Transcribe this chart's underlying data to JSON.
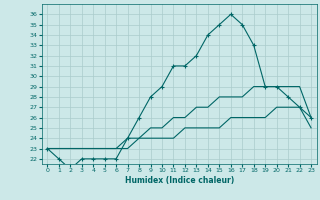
{
  "title": "",
  "xlabel": "Humidex (Indice chaleur)",
  "ylabel": "",
  "bg_color": "#cce8e8",
  "grid_color": "#aacccc",
  "line_color": "#006666",
  "xlim": [
    -0.5,
    23.5
  ],
  "ylim": [
    21.5,
    37.0
  ],
  "xticks": [
    0,
    1,
    2,
    3,
    4,
    5,
    6,
    7,
    8,
    9,
    10,
    11,
    12,
    13,
    14,
    15,
    16,
    17,
    18,
    19,
    20,
    21,
    22,
    23
  ],
  "yticks": [
    22,
    23,
    24,
    25,
    26,
    27,
    28,
    29,
    30,
    31,
    32,
    33,
    34,
    35,
    36
  ],
  "series": [
    {
      "x": [
        0,
        1,
        2,
        3,
        4,
        5,
        6,
        7,
        8,
        9,
        10,
        11,
        12,
        13,
        14,
        15,
        16,
        17,
        18,
        19,
        20,
        21,
        22,
        23
      ],
      "y": [
        23,
        22,
        21,
        22,
        22,
        22,
        22,
        24,
        26,
        28,
        29,
        31,
        31,
        32,
        34,
        35,
        36,
        35,
        33,
        29,
        29,
        28,
        27,
        26
      ],
      "marker": "+"
    },
    {
      "x": [
        0,
        1,
        2,
        3,
        4,
        5,
        6,
        7,
        8,
        9,
        10,
        11,
        12,
        13,
        14,
        15,
        16,
        17,
        18,
        19,
        20,
        21,
        22,
        23
      ],
      "y": [
        23,
        23,
        23,
        23,
        23,
        23,
        23,
        24,
        24,
        25,
        25,
        26,
        26,
        27,
        27,
        28,
        28,
        28,
        29,
        29,
        29,
        29,
        29,
        26
      ],
      "marker": null
    },
    {
      "x": [
        0,
        1,
        2,
        3,
        4,
        5,
        6,
        7,
        8,
        9,
        10,
        11,
        12,
        13,
        14,
        15,
        16,
        17,
        18,
        19,
        20,
        21,
        22,
        23
      ],
      "y": [
        23,
        23,
        23,
        23,
        23,
        23,
        23,
        23,
        24,
        24,
        24,
        24,
        25,
        25,
        25,
        25,
        26,
        26,
        26,
        26,
        27,
        27,
        27,
        25
      ],
      "marker": null
    }
  ]
}
